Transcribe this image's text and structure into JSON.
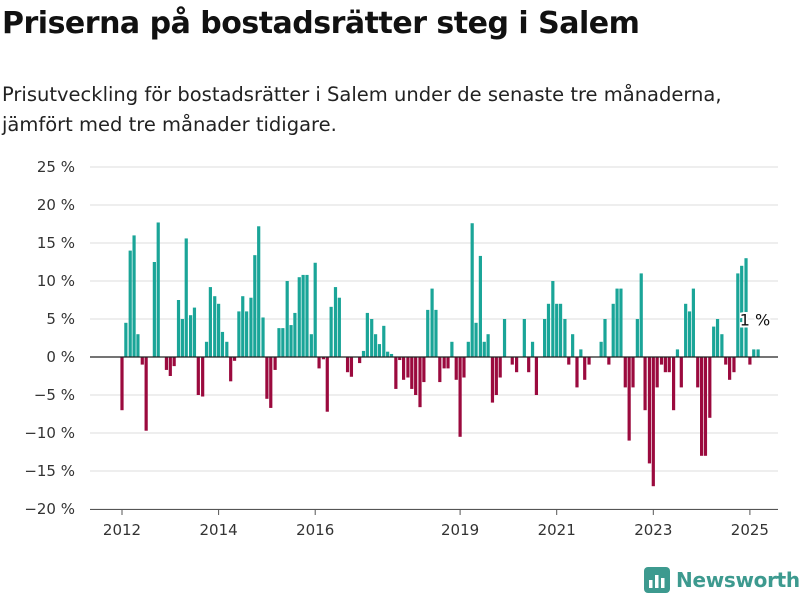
{
  "title": "Priserna på bostadsrätter steg i Salem",
  "subtitle": "Prisutveckling för bostadsrätter i Salem under de senaste tre månaderna, jämfört med tre månader tidigare.",
  "logo_text": "Newsworthy",
  "colors": {
    "positive": "#1aa598",
    "negative": "#9b0a3e",
    "grid": "#dddddd",
    "axis_text": "#333333",
    "logo": "#3d9a8f"
  },
  "chart_data": {
    "type": "bar",
    "title": "Priserna på bostadsrätter steg i Salem",
    "ylim": [
      -20,
      25
    ],
    "yticks": [
      25,
      20,
      15,
      10,
      5,
      0,
      -5,
      -10,
      -15,
      -20
    ],
    "ytick_labels": [
      "25 %",
      "20 %",
      "15 %",
      "10 %",
      "5 %",
      "0 %",
      "−5 %",
      "−10 %",
      "−15 %",
      "−20 %"
    ],
    "xticks": [
      {
        "label": "2012",
        "t": 2012.0
      },
      {
        "label": "2014",
        "t": 2014.0
      },
      {
        "label": "2016",
        "t": 2016.0
      },
      {
        "label": "2019",
        "t": 2019.0
      },
      {
        "label": "2021",
        "t": 2021.0
      },
      {
        "label": "2023",
        "t": 2023.0
      },
      {
        "label": "2025",
        "t": 2025.0
      }
    ],
    "grid": true,
    "annotation": {
      "text": "1 %",
      "t": 2025.08,
      "value": 1
    },
    "points": [
      {
        "t": 2012.0,
        "v": -7
      },
      {
        "t": 2012.08,
        "v": 4.5
      },
      {
        "t": 2012.17,
        "v": 14
      },
      {
        "t": 2012.25,
        "v": 16
      },
      {
        "t": 2012.33,
        "v": 3
      },
      {
        "t": 2012.42,
        "v": -1
      },
      {
        "t": 2012.5,
        "v": -9.7
      },
      {
        "t": 2012.67,
        "v": 12.5
      },
      {
        "t": 2012.75,
        "v": 17.7
      },
      {
        "t": 2012.92,
        "v": -1.7
      },
      {
        "t": 2013.0,
        "v": -2.5
      },
      {
        "t": 2013.08,
        "v": -1.2
      },
      {
        "t": 2013.17,
        "v": 7.5
      },
      {
        "t": 2013.25,
        "v": 5
      },
      {
        "t": 2013.33,
        "v": 15.6
      },
      {
        "t": 2013.42,
        "v": 5.5
      },
      {
        "t": 2013.5,
        "v": 6.5
      },
      {
        "t": 2013.58,
        "v": -5
      },
      {
        "t": 2013.67,
        "v": -5.2
      },
      {
        "t": 2013.75,
        "v": 2
      },
      {
        "t": 2013.83,
        "v": 9.2
      },
      {
        "t": 2013.92,
        "v": 8
      },
      {
        "t": 2014.0,
        "v": 7
      },
      {
        "t": 2014.08,
        "v": 3.3
      },
      {
        "t": 2014.17,
        "v": 2
      },
      {
        "t": 2014.25,
        "v": -3.2
      },
      {
        "t": 2014.33,
        "v": -0.5
      },
      {
        "t": 2014.42,
        "v": 6
      },
      {
        "t": 2014.5,
        "v": 8
      },
      {
        "t": 2014.58,
        "v": 6
      },
      {
        "t": 2014.67,
        "v": 7.8
      },
      {
        "t": 2014.75,
        "v": 13.4
      },
      {
        "t": 2014.83,
        "v": 17.2
      },
      {
        "t": 2014.92,
        "v": 5.2
      },
      {
        "t": 2015.0,
        "v": -5.5
      },
      {
        "t": 2015.08,
        "v": -6.7
      },
      {
        "t": 2015.17,
        "v": -1.7
      },
      {
        "t": 2015.25,
        "v": 3.8
      },
      {
        "t": 2015.33,
        "v": 3.8
      },
      {
        "t": 2015.42,
        "v": 10
      },
      {
        "t": 2015.5,
        "v": 4.2
      },
      {
        "t": 2015.58,
        "v": 5.8
      },
      {
        "t": 2015.67,
        "v": 10.5
      },
      {
        "t": 2015.75,
        "v": 10.8
      },
      {
        "t": 2015.83,
        "v": 10.8
      },
      {
        "t": 2015.92,
        "v": 3
      },
      {
        "t": 2016.0,
        "v": 12.4
      },
      {
        "t": 2016.08,
        "v": -1.5
      },
      {
        "t": 2016.17,
        "v": -0.3
      },
      {
        "t": 2016.25,
        "v": -7.2
      },
      {
        "t": 2016.33,
        "v": 6.6
      },
      {
        "t": 2016.42,
        "v": 9.2
      },
      {
        "t": 2016.5,
        "v": 7.8
      },
      {
        "t": 2016.67,
        "v": -2
      },
      {
        "t": 2016.75,
        "v": -2.6
      },
      {
        "t": 2016.92,
        "v": -0.8
      },
      {
        "t": 2017.0,
        "v": 0.8
      },
      {
        "t": 2017.08,
        "v": 5.8
      },
      {
        "t": 2017.17,
        "v": 5
      },
      {
        "t": 2017.25,
        "v": 3
      },
      {
        "t": 2017.33,
        "v": 1.7
      },
      {
        "t": 2017.42,
        "v": 4.1
      },
      {
        "t": 2017.5,
        "v": 0.7
      },
      {
        "t": 2017.58,
        "v": 0.4
      },
      {
        "t": 2017.67,
        "v": -4.2
      },
      {
        "t": 2017.75,
        "v": -0.4
      },
      {
        "t": 2017.83,
        "v": -3
      },
      {
        "t": 2017.92,
        "v": -2.7
      },
      {
        "t": 2018.0,
        "v": -4.2
      },
      {
        "t": 2018.08,
        "v": -5
      },
      {
        "t": 2018.17,
        "v": -6.6
      },
      {
        "t": 2018.25,
        "v": -3.3
      },
      {
        "t": 2018.33,
        "v": 6.2
      },
      {
        "t": 2018.42,
        "v": 9
      },
      {
        "t": 2018.5,
        "v": 6.2
      },
      {
        "t": 2018.58,
        "v": -3.3
      },
      {
        "t": 2018.67,
        "v": -1.5
      },
      {
        "t": 2018.75,
        "v": -1.5
      },
      {
        "t": 2018.83,
        "v": 2
      },
      {
        "t": 2018.92,
        "v": -3
      },
      {
        "t": 2019.0,
        "v": -10.5
      },
      {
        "t": 2019.08,
        "v": -2.7
      },
      {
        "t": 2019.17,
        "v": 2
      },
      {
        "t": 2019.25,
        "v": 17.6
      },
      {
        "t": 2019.33,
        "v": 4.5
      },
      {
        "t": 2019.42,
        "v": 13.3
      },
      {
        "t": 2019.5,
        "v": 2
      },
      {
        "t": 2019.58,
        "v": 3
      },
      {
        "t": 2019.67,
        "v": -6
      },
      {
        "t": 2019.75,
        "v": -5
      },
      {
        "t": 2019.83,
        "v": -2.7
      },
      {
        "t": 2019.92,
        "v": 5
      },
      {
        "t": 2020.08,
        "v": -1
      },
      {
        "t": 2020.17,
        "v": -2
      },
      {
        "t": 2020.33,
        "v": 5
      },
      {
        "t": 2020.42,
        "v": -2
      },
      {
        "t": 2020.5,
        "v": 2
      },
      {
        "t": 2020.58,
        "v": -5
      },
      {
        "t": 2020.75,
        "v": 5
      },
      {
        "t": 2020.83,
        "v": 7
      },
      {
        "t": 2020.92,
        "v": 10
      },
      {
        "t": 2021.0,
        "v": 7
      },
      {
        "t": 2021.08,
        "v": 7
      },
      {
        "t": 2021.17,
        "v": 5
      },
      {
        "t": 2021.25,
        "v": -1
      },
      {
        "t": 2021.33,
        "v": 3
      },
      {
        "t": 2021.42,
        "v": -4
      },
      {
        "t": 2021.5,
        "v": 1
      },
      {
        "t": 2021.58,
        "v": -3
      },
      {
        "t": 2021.67,
        "v": -1
      },
      {
        "t": 2021.92,
        "v": 2
      },
      {
        "t": 2022.0,
        "v": 5
      },
      {
        "t": 2022.08,
        "v": -1
      },
      {
        "t": 2022.17,
        "v": 7
      },
      {
        "t": 2022.25,
        "v": 9
      },
      {
        "t": 2022.33,
        "v": 9
      },
      {
        "t": 2022.42,
        "v": -4
      },
      {
        "t": 2022.5,
        "v": -11
      },
      {
        "t": 2022.58,
        "v": -4
      },
      {
        "t": 2022.67,
        "v": 5
      },
      {
        "t": 2022.75,
        "v": 11
      },
      {
        "t": 2022.83,
        "v": -7
      },
      {
        "t": 2022.92,
        "v": -14
      },
      {
        "t": 2023.0,
        "v": -17
      },
      {
        "t": 2023.08,
        "v": -4
      },
      {
        "t": 2023.17,
        "v": -1
      },
      {
        "t": 2023.25,
        "v": -2
      },
      {
        "t": 2023.33,
        "v": -2
      },
      {
        "t": 2023.42,
        "v": -7
      },
      {
        "t": 2023.5,
        "v": 1
      },
      {
        "t": 2023.58,
        "v": -4
      },
      {
        "t": 2023.67,
        "v": 7
      },
      {
        "t": 2023.75,
        "v": 6
      },
      {
        "t": 2023.83,
        "v": 9
      },
      {
        "t": 2023.92,
        "v": -4
      },
      {
        "t": 2024.0,
        "v": -13
      },
      {
        "t": 2024.08,
        "v": -13
      },
      {
        "t": 2024.17,
        "v": -8
      },
      {
        "t": 2024.25,
        "v": 4
      },
      {
        "t": 2024.33,
        "v": 5
      },
      {
        "t": 2024.42,
        "v": 3
      },
      {
        "t": 2024.5,
        "v": -1
      },
      {
        "t": 2024.58,
        "v": -3
      },
      {
        "t": 2024.67,
        "v": -2
      },
      {
        "t": 2024.75,
        "v": 11
      },
      {
        "t": 2024.83,
        "v": 12
      },
      {
        "t": 2024.92,
        "v": 13
      },
      {
        "t": 2025.0,
        "v": -1
      },
      {
        "t": 2025.08,
        "v": 1
      },
      {
        "t": 2025.17,
        "v": 1
      }
    ]
  }
}
